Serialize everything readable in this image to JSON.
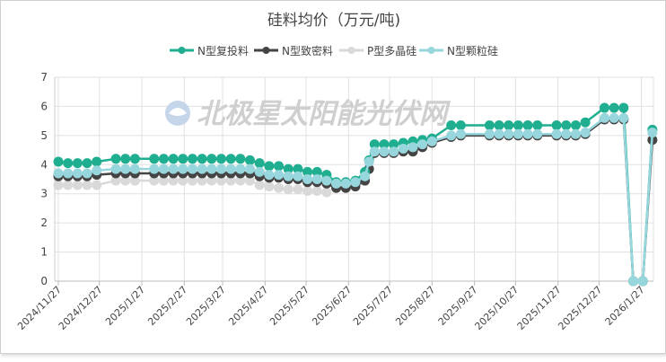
{
  "watermark": "北极星太阳能光伏网",
  "chart_data": {
    "type": "line",
    "title": "硅料均价（万元/吨)",
    "xlabel": "",
    "ylabel": "",
    "ylim": [
      0,
      7
    ],
    "yticks": [
      "0",
      "1",
      "2",
      "3",
      "4",
      "5",
      "6",
      "7"
    ],
    "grid": true,
    "legend_position": "top-center",
    "xtick_labels": [
      "2024/11/27",
      "2024/12/27",
      "2025/1/27",
      "2025/2/27",
      "2025/3/27",
      "2025/4/27",
      "2025/5/27",
      "2025/6/27",
      "2025/7/27",
      "2025/8/27",
      "2025/9/27",
      "2025/10/27",
      "2025/11/27",
      "2025/12/27",
      "2026/1/27"
    ],
    "x": [
      "2024/11/27",
      "2024/12/4",
      "2024/12/11",
      "2024/12/18",
      "2024/12/25",
      "2025/1/8",
      "2025/1/15",
      "2025/1/22",
      "2025/2/5",
      "2025/2/12",
      "2025/2/19",
      "2025/2/26",
      "2025/3/5",
      "2025/3/12",
      "2025/3/19",
      "2025/3/26",
      "2025/4/2",
      "2025/4/9",
      "2025/4/16",
      "2025/4/23",
      "2025/4/30",
      "2025/5/7",
      "2025/5/14",
      "2025/5/21",
      "2025/5/28",
      "2025/6/4",
      "2025/6/11",
      "2025/6/18",
      "2025/6/25",
      "2025/7/2",
      "2025/7/9",
      "2025/7/12",
      "2025/7/16",
      "2025/7/23",
      "2025/7/30",
      "2025/8/6",
      "2025/8/13",
      "2025/8/20",
      "2025/8/27",
      "2025/9/10",
      "2025/9/17",
      "2025/10/8",
      "2025/10/15",
      "2025/10/22",
      "2025/10/29",
      "2025/11/5",
      "2025/11/12",
      "2025/11/26",
      "2025/12/3",
      "2025/12/10",
      "2025/12/17",
      "2025/12/31",
      "2026/1/7",
      "2026/1/14",
      "2026/1/21",
      "2026/1/28",
      "2026/2/4"
    ],
    "series": [
      {
        "name": "N型复投料",
        "color": "#1fae8f",
        "values": [
          4.1,
          4.05,
          4.05,
          4.05,
          4.1,
          4.2,
          4.2,
          4.2,
          4.2,
          4.2,
          4.2,
          4.2,
          4.2,
          4.2,
          4.2,
          4.2,
          4.2,
          4.2,
          4.15,
          4.05,
          3.95,
          3.95,
          3.85,
          3.85,
          3.75,
          3.75,
          3.65,
          3.4,
          3.4,
          3.45,
          3.75,
          4.15,
          4.7,
          4.7,
          4.7,
          4.75,
          4.8,
          4.85,
          4.9,
          5.35,
          5.35,
          5.35,
          5.35,
          5.35,
          5.35,
          5.35,
          5.35,
          5.35,
          5.35,
          5.35,
          5.45,
          5.95,
          5.95,
          5.95,
          0,
          0,
          5.2
        ]
      },
      {
        "name": "N型致密料",
        "color": "#444444",
        "values": [
          3.6,
          3.6,
          3.6,
          3.6,
          3.65,
          3.7,
          3.7,
          3.7,
          3.7,
          3.7,
          3.7,
          3.7,
          3.7,
          3.7,
          3.7,
          3.7,
          3.7,
          3.7,
          3.7,
          3.6,
          3.55,
          3.55,
          3.5,
          3.5,
          3.4,
          3.4,
          3.35,
          3.2,
          3.2,
          3.25,
          3.45,
          3.85,
          4.4,
          4.4,
          4.4,
          4.45,
          4.45,
          4.6,
          4.75,
          4.95,
          5.0,
          5.0,
          5.0,
          5.0,
          5.0,
          5.0,
          5.0,
          5.0,
          5.0,
          5.0,
          5.05,
          5.55,
          5.55,
          5.55,
          0,
          0,
          4.85
        ]
      },
      {
        "name": "P型多晶硅",
        "color": "#d9d9d9",
        "values": [
          3.3,
          3.3,
          3.3,
          3.3,
          3.3,
          3.45,
          3.45,
          3.45,
          3.45,
          3.45,
          3.45,
          3.45,
          3.45,
          3.45,
          3.45,
          3.45,
          3.45,
          3.45,
          3.45,
          3.3,
          3.25,
          3.2,
          3.15,
          3.15,
          3.1,
          3.1,
          3.05,
          null,
          null,
          null,
          null,
          null,
          null,
          null,
          null,
          null,
          null,
          null,
          null,
          null,
          null,
          null,
          null,
          null,
          null,
          null,
          null,
          null,
          null,
          null,
          null,
          null,
          null,
          null,
          null,
          null,
          null
        ]
      },
      {
        "name": "N型颗粒硅",
        "color": "#96d6dc",
        "values": [
          3.7,
          3.7,
          3.7,
          3.7,
          3.8,
          3.85,
          3.85,
          3.85,
          3.85,
          3.85,
          3.85,
          3.85,
          3.85,
          3.85,
          3.85,
          3.85,
          3.85,
          3.85,
          3.85,
          3.75,
          3.65,
          3.65,
          3.6,
          3.6,
          3.5,
          3.5,
          3.45,
          3.35,
          3.35,
          3.4,
          3.6,
          4.1,
          4.45,
          4.45,
          4.45,
          4.55,
          4.6,
          4.7,
          4.8,
          5.0,
          5.05,
          5.05,
          5.05,
          5.05,
          5.05,
          5.05,
          5.05,
          5.05,
          5.05,
          5.05,
          5.1,
          5.6,
          5.6,
          5.6,
          0,
          0,
          5.1
        ]
      }
    ],
    "draw_order": [
      2,
      1,
      0,
      3
    ]
  }
}
